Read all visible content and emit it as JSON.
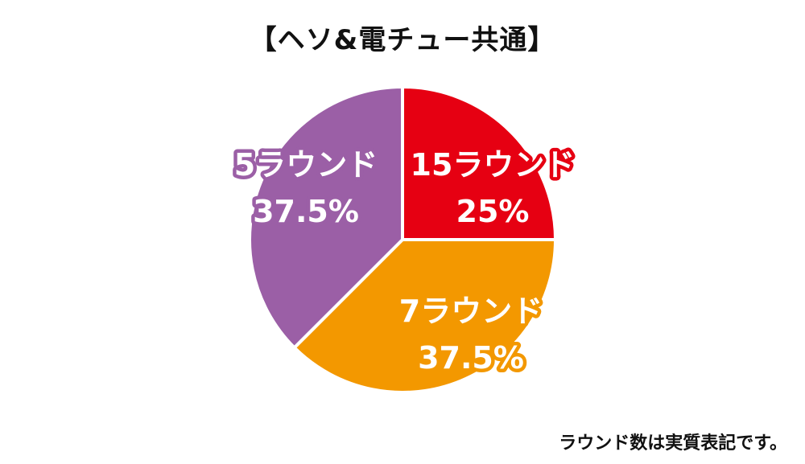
{
  "chart_data": {
    "type": "pie",
    "title": "【ヘソ&電チュー共通】",
    "slices": [
      {
        "label": "15ラウンド",
        "value": 25,
        "value_label": "25%",
        "color": "#e60012"
      },
      {
        "label": "7ラウンド",
        "value": 37.5,
        "value_label": "37.5%",
        "color": "#f39800"
      },
      {
        "label": "5ラウンド",
        "value": 37.5,
        "value_label": "37.5%",
        "color": "#9b5fa6"
      }
    ],
    "start_angle": "12 o'clock",
    "direction": "clockwise",
    "legend": "none (labels inside slices)",
    "note": "ラウンド数は実質表記です。"
  }
}
